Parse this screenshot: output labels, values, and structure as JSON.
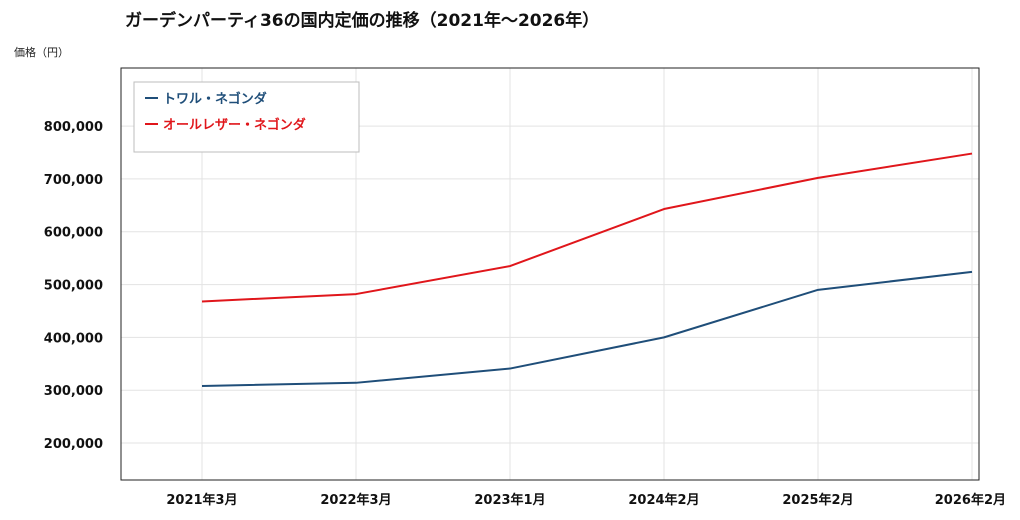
{
  "chart_data": {
    "type": "line",
    "title": "ガーデンパーティ36の国内定価の推移（2021年～2026年）",
    "ylabel": "価格（円）",
    "xlabel": "",
    "categories": [
      "2021年3月",
      "2022年3月",
      "2023年1月",
      "2024年2月",
      "2025年2月",
      "2026年2月"
    ],
    "series": [
      {
        "name": "トワル・ネゴンダ",
        "color": "#1f4e79",
        "values": [
          308000,
          314000,
          341000,
          400000,
          490000,
          524000
        ]
      },
      {
        "name": "オールレザー・ネゴンダ",
        "color": "#e0161b",
        "values": [
          468000,
          482000,
          535000,
          643000,
          702000,
          748000
        ]
      }
    ],
    "yticks": [
      200000,
      300000,
      400000,
      500000,
      600000,
      700000,
      800000
    ],
    "yticklabels": [
      "200,000",
      "300,000",
      "400,000",
      "500,000",
      "600,000",
      "700,000",
      "800,000"
    ],
    "ylim": [
      130000,
      910000
    ],
    "grid": true,
    "legend_position": "top-left"
  }
}
